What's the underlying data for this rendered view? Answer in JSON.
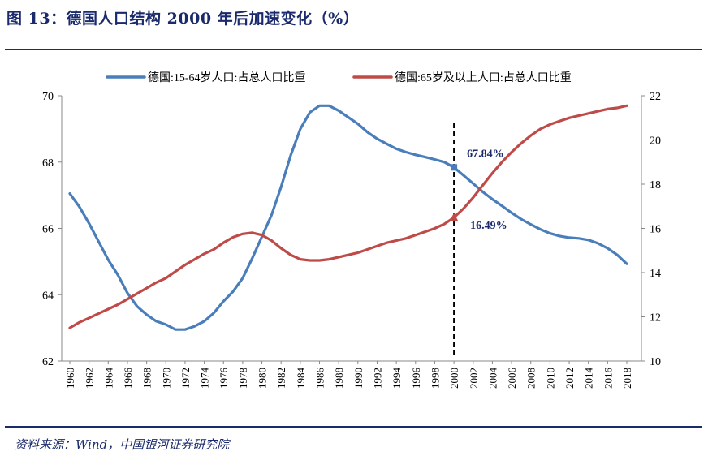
{
  "title": "图 13：德国人口结构 2000 年后加速变化（%）",
  "source": "资料来源：Wind，中国银河证券研究院",
  "chart_data": {
    "type": "line",
    "x": [
      1960,
      1961,
      1962,
      1963,
      1964,
      1965,
      1966,
      1967,
      1968,
      1969,
      1970,
      1971,
      1972,
      1973,
      1974,
      1975,
      1976,
      1977,
      1978,
      1979,
      1980,
      1981,
      1982,
      1983,
      1984,
      1985,
      1986,
      1987,
      1988,
      1989,
      1990,
      1991,
      1992,
      1993,
      1994,
      1995,
      1996,
      1997,
      1998,
      1999,
      2000,
      2001,
      2002,
      2003,
      2004,
      2005,
      2006,
      2007,
      2008,
      2009,
      2010,
      2011,
      2012,
      2013,
      2014,
      2015,
      2016,
      2017,
      2018
    ],
    "x_tick_labels": [
      "1960",
      "1962",
      "1964",
      "1966",
      "1968",
      "1970",
      "1972",
      "1974",
      "1976",
      "1978",
      "1980",
      "1982",
      "1984",
      "1986",
      "1988",
      "1990",
      "1992",
      "1994",
      "1996",
      "1998",
      "2000",
      "2002",
      "2004",
      "2006",
      "2008",
      "2010",
      "2012",
      "2014",
      "2016",
      "2018"
    ],
    "series": [
      {
        "name": "德国:15-64岁人口:占总人口比重",
        "axis": "left",
        "color": "#4a7ebb",
        "values": [
          67.05,
          66.65,
          66.15,
          65.6,
          65.05,
          64.6,
          64.05,
          63.65,
          63.4,
          63.2,
          63.1,
          62.95,
          62.95,
          63.05,
          63.2,
          63.45,
          63.8,
          64.1,
          64.5,
          65.1,
          65.75,
          66.4,
          67.25,
          68.2,
          69.0,
          69.5,
          69.7,
          69.7,
          69.55,
          69.35,
          69.15,
          68.9,
          68.7,
          68.55,
          68.4,
          68.3,
          68.22,
          68.15,
          68.08,
          68.0,
          67.84,
          67.6,
          67.35,
          67.1,
          66.88,
          66.68,
          66.47,
          66.28,
          66.12,
          65.97,
          65.85,
          65.77,
          65.72,
          65.7,
          65.65,
          65.55,
          65.4,
          65.2,
          64.93
        ]
      },
      {
        "name": "德国:65岁及以上人口:占总人口比重",
        "axis": "right",
        "color": "#be4b48",
        "values": [
          11.5,
          11.75,
          11.95,
          12.15,
          12.35,
          12.55,
          12.8,
          13.05,
          13.3,
          13.55,
          13.75,
          14.05,
          14.35,
          14.6,
          14.85,
          15.05,
          15.35,
          15.6,
          15.75,
          15.8,
          15.7,
          15.45,
          15.1,
          14.8,
          14.6,
          14.55,
          14.55,
          14.6,
          14.7,
          14.8,
          14.9,
          15.05,
          15.2,
          15.35,
          15.45,
          15.55,
          15.7,
          15.85,
          16.0,
          16.2,
          16.49,
          16.9,
          17.4,
          17.95,
          18.5,
          19.0,
          19.45,
          19.85,
          20.2,
          20.5,
          20.7,
          20.85,
          21.0,
          21.1,
          21.2,
          21.3,
          21.4,
          21.45,
          21.55
        ]
      }
    ],
    "y_left": {
      "min": 62,
      "max": 70,
      "ticks": [
        "62",
        "64",
        "66",
        "68",
        "70"
      ]
    },
    "y_right": {
      "min": 10,
      "max": 22,
      "ticks": [
        "10",
        "12",
        "14",
        "16",
        "18",
        "20",
        "22"
      ]
    },
    "marker_year": 2000,
    "annotations": [
      {
        "text": "67.84%",
        "series": 0,
        "year": 2000
      },
      {
        "text": "16.49%",
        "series": 1,
        "year": 2000
      }
    ],
    "legend_position": "top"
  }
}
